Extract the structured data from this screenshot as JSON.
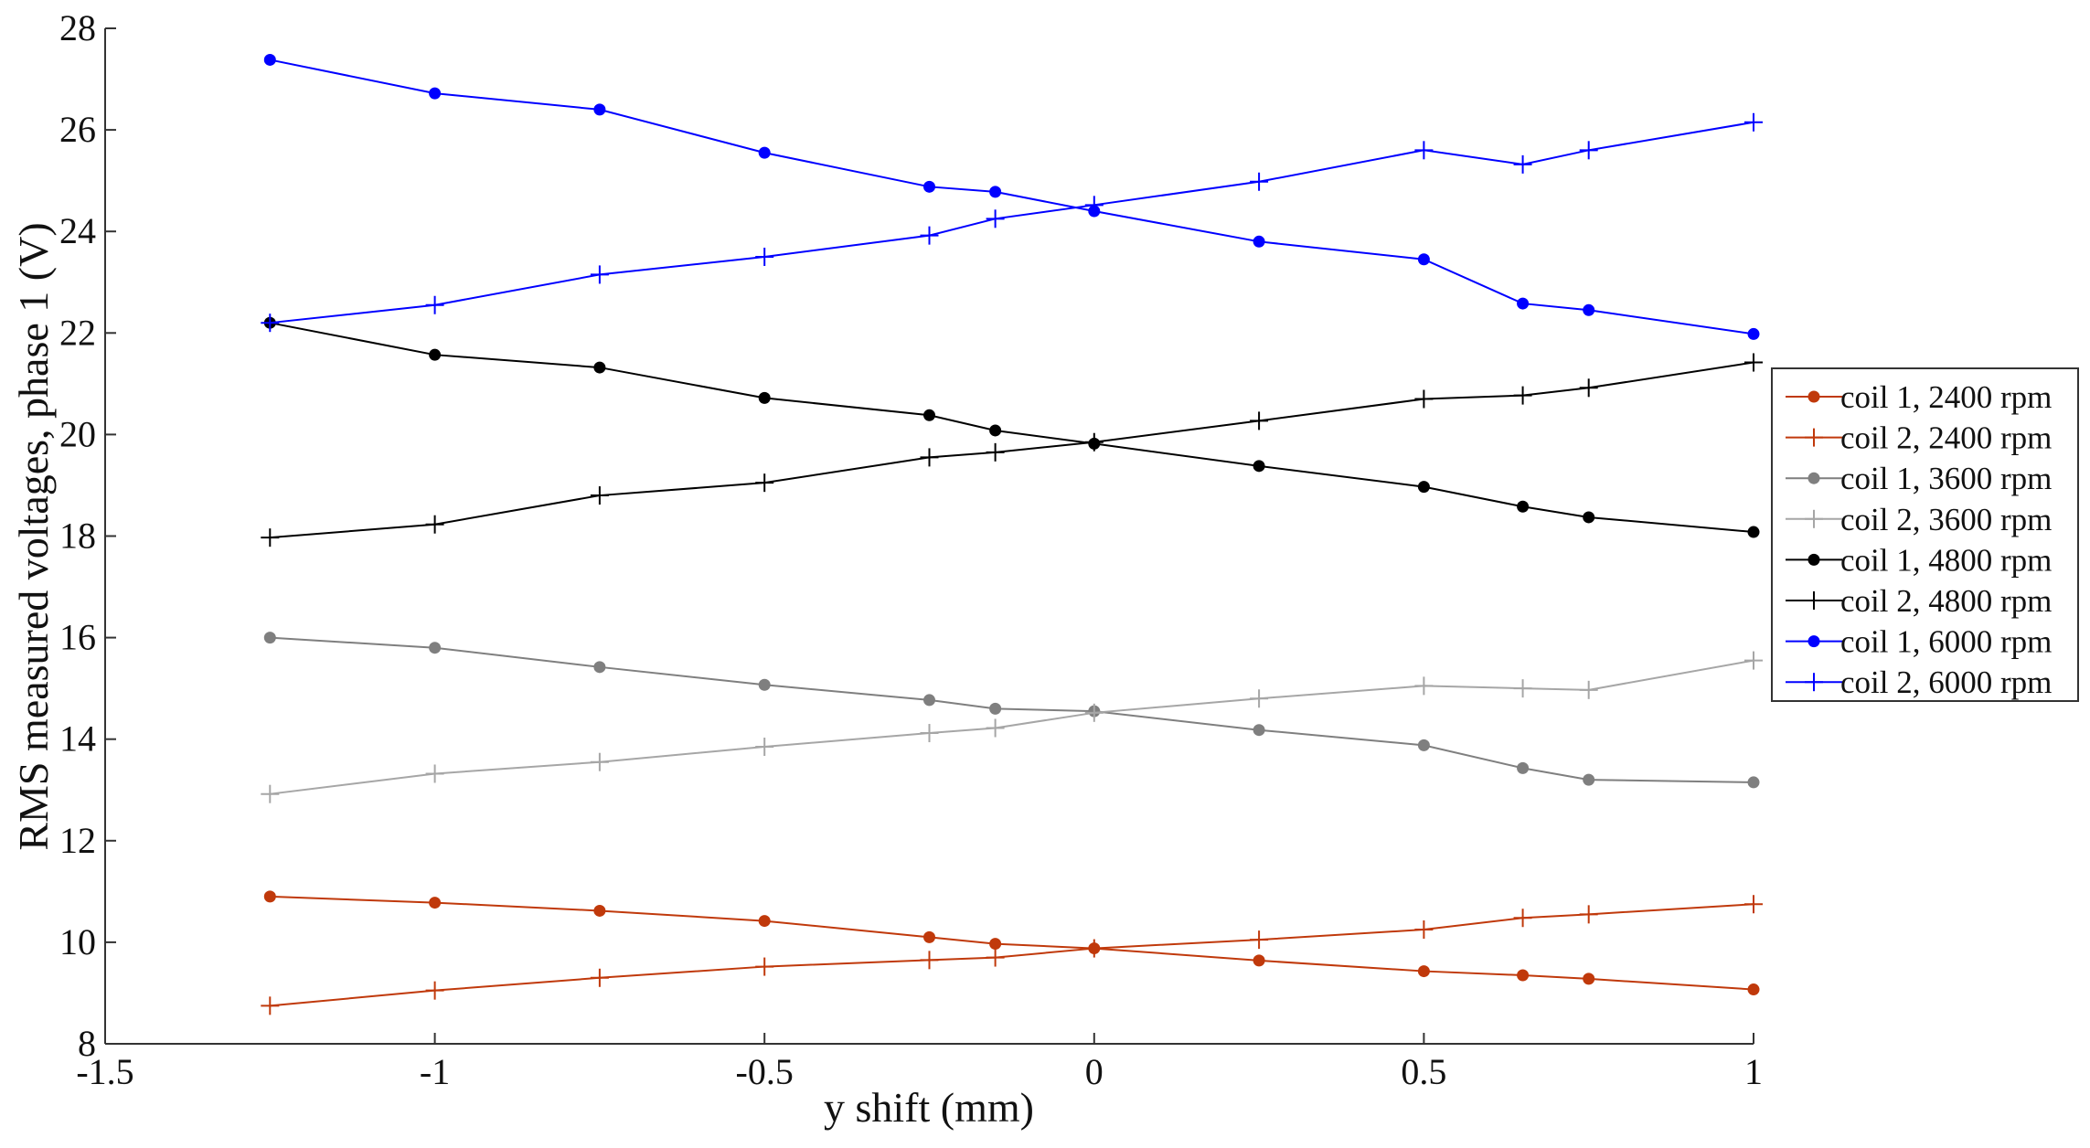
{
  "chart_data": {
    "type": "line",
    "xlabel": "y shift (mm)",
    "ylabel": "RMS measured voltages, phase 1 (V)",
    "xlim": [
      -1.5,
      1
    ],
    "ylim": [
      8,
      28
    ],
    "xticks": [
      "-1.5",
      "-1",
      "-0.5",
      "0",
      "0.5",
      "1"
    ],
    "yticks": [
      "8",
      "10",
      "12",
      "14",
      "16",
      "18",
      "20",
      "22",
      "24",
      "26",
      "28"
    ],
    "grid": false,
    "legend_position": "right",
    "x": [
      -1.25,
      -1,
      -0.75,
      -0.5,
      -0.25,
      -0.15,
      0,
      0.25,
      0.5,
      0.65,
      0.75,
      1
    ],
    "series": [
      {
        "name": "coil 1, 2400 rpm",
        "color": "#c0390b",
        "marker": "dot",
        "values": [
          10.9,
          10.78,
          10.62,
          10.42,
          10.1,
          9.97,
          9.88,
          9.64,
          9.43,
          9.35,
          9.28,
          9.07
        ]
      },
      {
        "name": "coil 2, 2400 rpm",
        "color": "#c0390b",
        "marker": "plus",
        "values": [
          8.75,
          9.05,
          9.3,
          9.52,
          9.65,
          9.7,
          9.88,
          10.05,
          10.25,
          10.48,
          10.55,
          10.75
        ]
      },
      {
        "name": "coil 1, 3600 rpm",
        "color": "#7f7f7f",
        "marker": "dot",
        "values": [
          16.0,
          15.8,
          15.42,
          15.07,
          14.77,
          14.6,
          14.55,
          14.18,
          13.88,
          13.43,
          13.2,
          13.15
        ]
      },
      {
        "name": "coil 2, 3600 rpm",
        "color": "#a6a6a6",
        "marker": "plus",
        "values": [
          12.92,
          13.32,
          13.55,
          13.85,
          14.12,
          14.22,
          14.52,
          14.8,
          15.05,
          15.0,
          14.97,
          15.55
        ]
      },
      {
        "name": "coil 1, 4800 rpm",
        "color": "#000000",
        "marker": "dot",
        "values": [
          22.2,
          21.57,
          21.32,
          20.72,
          20.38,
          20.08,
          19.82,
          19.38,
          18.97,
          18.58,
          18.37,
          18.08
        ]
      },
      {
        "name": "coil 2, 4800 rpm",
        "color": "#000000",
        "marker": "plus",
        "values": [
          17.97,
          18.23,
          18.8,
          19.05,
          19.55,
          19.65,
          19.85,
          20.27,
          20.7,
          20.77,
          20.92,
          21.42
        ]
      },
      {
        "name": "coil 1, 6000 rpm",
        "color": "#0000ff",
        "marker": "dot",
        "values": [
          27.38,
          26.72,
          26.4,
          25.55,
          24.88,
          24.78,
          24.4,
          23.8,
          23.45,
          22.58,
          22.45,
          21.98
        ]
      },
      {
        "name": "coil 2, 6000 rpm",
        "color": "#0000ff",
        "marker": "plus",
        "values": [
          22.2,
          22.55,
          23.15,
          23.5,
          23.92,
          24.25,
          24.52,
          24.98,
          25.6,
          25.32,
          25.6,
          26.15
        ]
      }
    ]
  }
}
